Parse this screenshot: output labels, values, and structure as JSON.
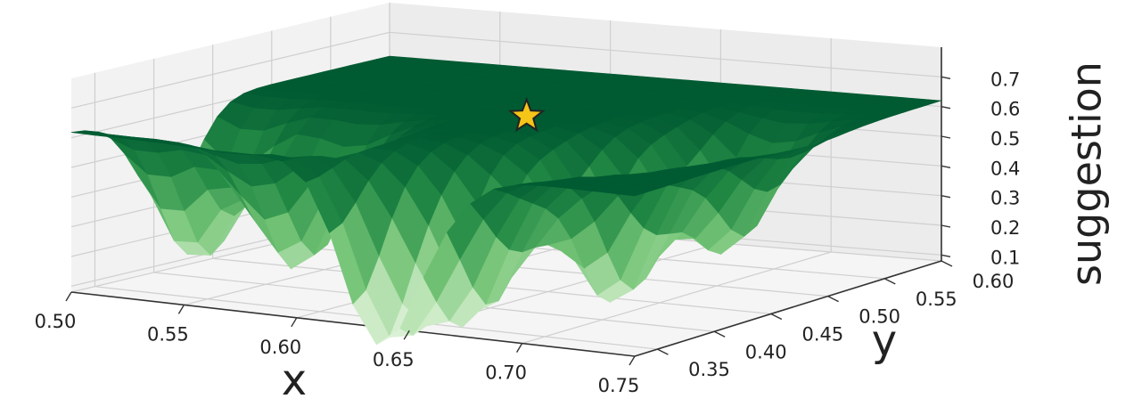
{
  "chart_data": {
    "type": "surface3d",
    "title": "",
    "xlabel": "x",
    "ylabel": "y",
    "zlabel": "suggestion",
    "xlim": [
      0.5,
      0.75
    ],
    "ylim": [
      0.33,
      0.6
    ],
    "zlim": [
      0.1,
      0.7
    ],
    "x_ticks": [
      "0.50",
      "0.55",
      "0.60",
      "0.65",
      "0.70",
      "0.75"
    ],
    "y_ticks": [
      "0.35",
      "0.40",
      "0.45",
      "0.50",
      "0.55",
      "0.60"
    ],
    "z_ticks": [
      "0.1",
      "0.2",
      "0.3",
      "0.4",
      "0.5",
      "0.6",
      "0.7"
    ],
    "colormap": "Greens",
    "grid": true,
    "surface_baseline": 0.62,
    "dips": [
      {
        "x": 0.515,
        "y": 0.41,
        "z": 0.12
      },
      {
        "x": 0.565,
        "y": 0.4,
        "z": 0.14
      },
      {
        "x": 0.635,
        "y": 0.33,
        "z": 0.05
      },
      {
        "x": 0.66,
        "y": 0.37,
        "z": 0.12
      },
      {
        "x": 0.69,
        "y": 0.43,
        "z": 0.1
      },
      {
        "x": 0.71,
        "y": 0.49,
        "z": 0.22
      }
    ],
    "marker": {
      "x": 0.625,
      "y": 0.48,
      "z": 0.62,
      "shape": "star",
      "color": "#f5c518"
    }
  }
}
